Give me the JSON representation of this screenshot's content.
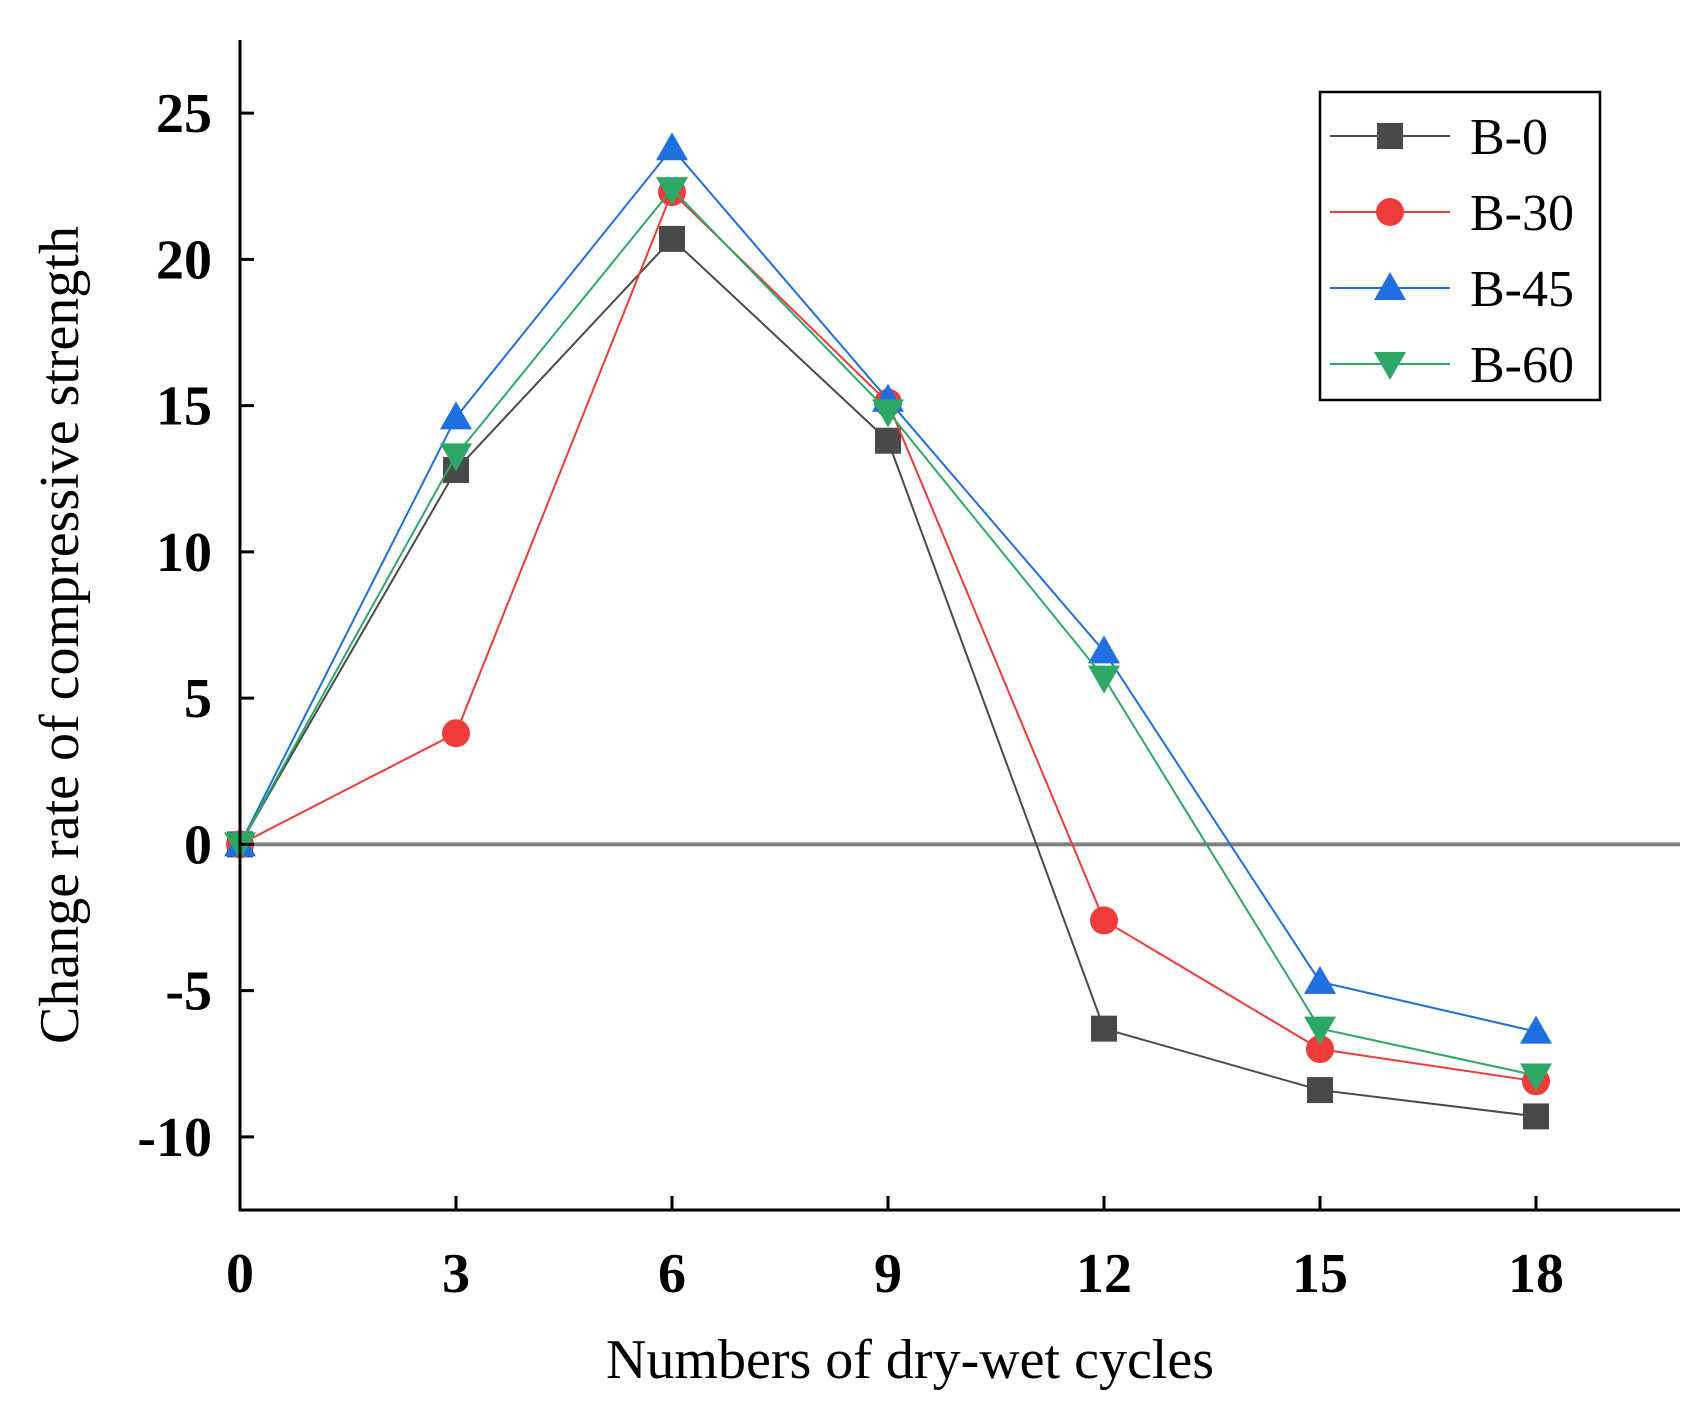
{
  "chart_data": {
    "type": "line",
    "title": "",
    "xlabel": "Numbers of dry-wet cycles",
    "ylabel": "Change rate of compressive strength",
    "x": [
      0,
      3,
      6,
      9,
      12,
      15,
      18
    ],
    "xlim": [
      0,
      20
    ],
    "ylim": [
      -12.5,
      27.5
    ],
    "xticks": [
      0,
      3,
      6,
      9,
      12,
      15,
      18
    ],
    "xtick_labels": [
      "0",
      "3",
      "6",
      "9",
      "12",
      "15",
      "18"
    ],
    "yticks": [
      -10,
      -5,
      0,
      5,
      10,
      15,
      20,
      25
    ],
    "ytick_labels": [
      "-10",
      "-5",
      "0",
      "5",
      "10",
      "15",
      "20",
      "25"
    ],
    "reference_line_y": 0,
    "legend_position": "top-right",
    "series": [
      {
        "name": "B-0",
        "color": "#4a4a4a",
        "marker": "square",
        "values": [
          0,
          12.8,
          20.7,
          13.8,
          -6.3,
          -8.4,
          -9.3
        ]
      },
      {
        "name": "B-30",
        "color": "#ee3b3b",
        "marker": "circle",
        "values": [
          0,
          3.8,
          22.3,
          15.1,
          -2.6,
          -7.0,
          -8.1
        ]
      },
      {
        "name": "B-45",
        "color": "#1f6fe0",
        "marker": "triangle-up",
        "values": [
          0,
          14.6,
          23.8,
          15.2,
          6.6,
          -4.7,
          -6.4
        ]
      },
      {
        "name": "B-60",
        "color": "#2ea866",
        "marker": "triangle-down",
        "values": [
          0,
          13.3,
          22.4,
          14.8,
          5.7,
          -6.3,
          -7.9
        ]
      }
    ]
  }
}
